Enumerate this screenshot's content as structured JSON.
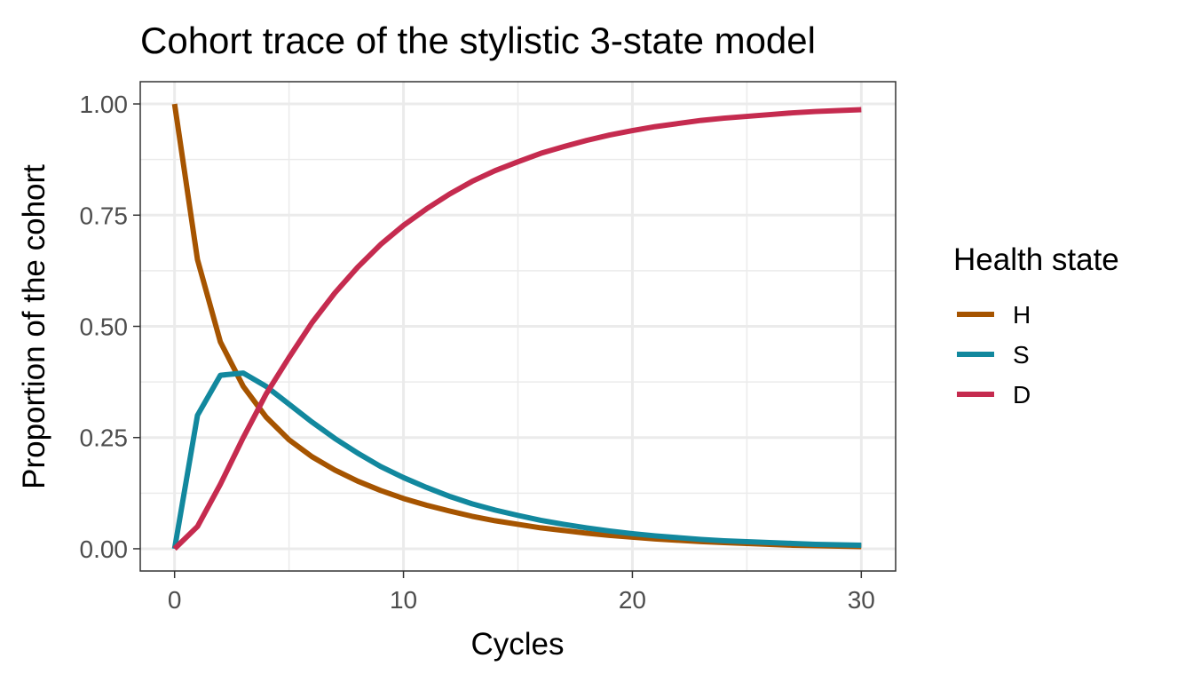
{
  "chart_data": {
    "type": "line",
    "title": "Cohort trace of the stylistic 3-state model",
    "xlabel": "Cycles",
    "ylabel": "Proportion of the cohort",
    "xlim": [
      -1.5,
      31.5
    ],
    "ylim": [
      -0.05,
      1.05
    ],
    "x_ticks": [
      0,
      10,
      20,
      30
    ],
    "y_ticks": [
      0.0,
      0.25,
      0.5,
      0.75,
      1.0
    ],
    "x_tick_labels": [
      "0",
      "10",
      "20",
      "30"
    ],
    "y_tick_labels": [
      "0.00",
      "0.25",
      "0.50",
      "0.75",
      "1.00"
    ],
    "grid": true,
    "legend": {
      "title": "Health state",
      "position": "right"
    },
    "x": [
      0,
      1,
      2,
      3,
      4,
      5,
      6,
      7,
      8,
      9,
      10,
      11,
      12,
      13,
      14,
      15,
      16,
      17,
      18,
      19,
      20,
      21,
      22,
      23,
      24,
      25,
      26,
      27,
      28,
      29,
      30
    ],
    "series": [
      {
        "name": "H",
        "color": "#A65400",
        "values": [
          1.0,
          0.65,
          0.465,
          0.365,
          0.296,
          0.245,
          0.207,
          0.177,
          0.152,
          0.131,
          0.113,
          0.098,
          0.085,
          0.073,
          0.063,
          0.055,
          0.047,
          0.041,
          0.035,
          0.03,
          0.026,
          0.022,
          0.019,
          0.016,
          0.014,
          0.012,
          0.01,
          0.008,
          0.007,
          0.006,
          0.005
        ]
      },
      {
        "name": "S",
        "color": "#12889E",
        "values": [
          0.0,
          0.3,
          0.39,
          0.395,
          0.365,
          0.325,
          0.285,
          0.248,
          0.215,
          0.185,
          0.16,
          0.138,
          0.118,
          0.101,
          0.087,
          0.075,
          0.064,
          0.055,
          0.047,
          0.04,
          0.034,
          0.029,
          0.025,
          0.021,
          0.018,
          0.016,
          0.014,
          0.012,
          0.01,
          0.009,
          0.008
        ]
      },
      {
        "name": "D",
        "color": "#C52B4F",
        "values": [
          0.0,
          0.05,
          0.145,
          0.25,
          0.348,
          0.43,
          0.508,
          0.575,
          0.633,
          0.684,
          0.727,
          0.764,
          0.797,
          0.826,
          0.85,
          0.87,
          0.889,
          0.904,
          0.918,
          0.93,
          0.94,
          0.949,
          0.956,
          0.963,
          0.968,
          0.972,
          0.976,
          0.98,
          0.983,
          0.985,
          0.987
        ]
      }
    ]
  }
}
